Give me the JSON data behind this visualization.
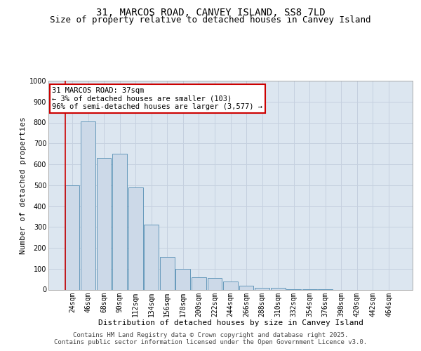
{
  "title_line1": "31, MARCOS ROAD, CANVEY ISLAND, SS8 7LD",
  "title_line2": "Size of property relative to detached houses in Canvey Island",
  "xlabel": "Distribution of detached houses by size in Canvey Island",
  "ylabel": "Number of detached properties",
  "categories": [
    "24sqm",
    "46sqm",
    "68sqm",
    "90sqm",
    "112sqm",
    "134sqm",
    "156sqm",
    "178sqm",
    "200sqm",
    "222sqm",
    "244sqm",
    "266sqm",
    "288sqm",
    "310sqm",
    "332sqm",
    "354sqm",
    "376sqm",
    "398sqm",
    "420sqm",
    "442sqm",
    "464sqm"
  ],
  "values": [
    500,
    805,
    630,
    650,
    490,
    310,
    155,
    100,
    58,
    57,
    38,
    20,
    10,
    7,
    3,
    2,
    1,
    0,
    0,
    0,
    0
  ],
  "bar_color": "#ccd9e8",
  "bar_edge_color": "#6699bb",
  "grid_color": "#c5d0df",
  "background_color": "#dce6f0",
  "annotation_text": "31 MARCOS ROAD: 37sqm\n← 3% of detached houses are smaller (103)\n96% of semi-detached houses are larger (3,577) →",
  "annotation_box_facecolor": "#ffffff",
  "annotation_box_edgecolor": "#cc0000",
  "red_line_color": "#cc0000",
  "ylim": [
    0,
    1000
  ],
  "yticks": [
    0,
    100,
    200,
    300,
    400,
    500,
    600,
    700,
    800,
    900,
    1000
  ],
  "footer_line1": "Contains HM Land Registry data © Crown copyright and database right 2025.",
  "footer_line2": "Contains public sector information licensed under the Open Government Licence v3.0.",
  "title_fontsize": 10,
  "subtitle_fontsize": 9,
  "axis_label_fontsize": 8,
  "tick_fontsize": 7,
  "annot_fontsize": 7.5,
  "footer_fontsize": 6.5
}
